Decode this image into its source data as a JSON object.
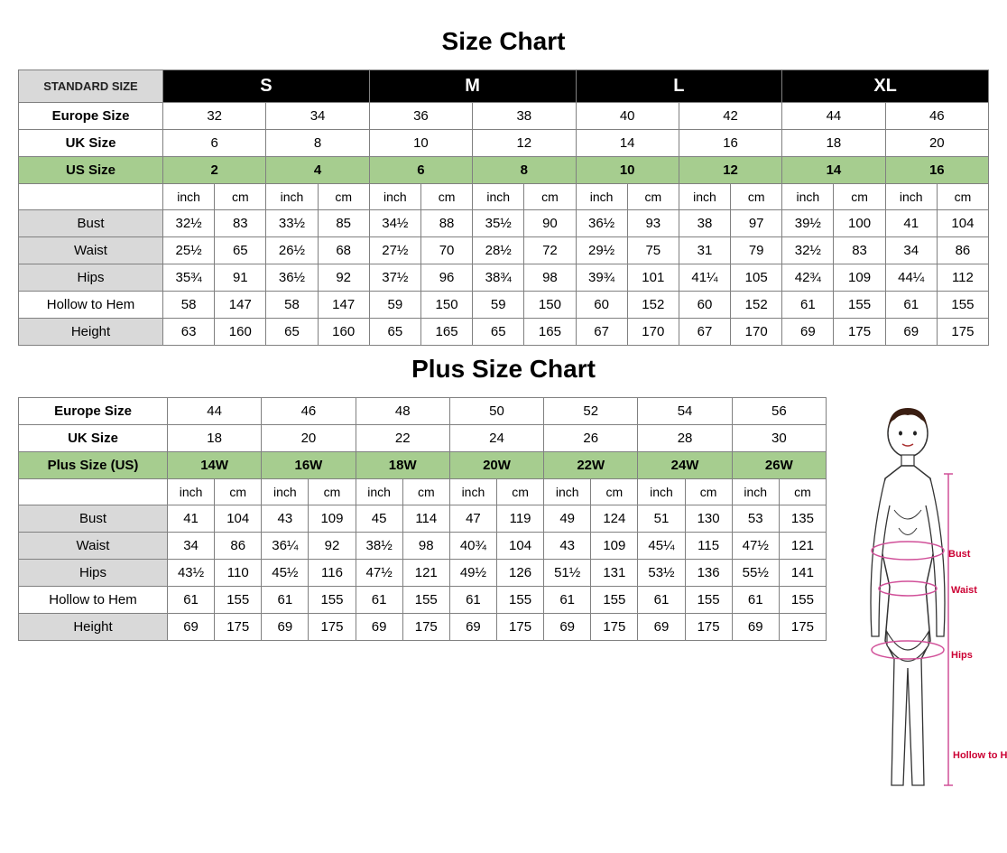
{
  "colors": {
    "header_black": "#000000",
    "header_gray": "#d9d9d9",
    "header_green": "#a6cd8f",
    "border": "#808080",
    "accent_red": "#cc0033"
  },
  "typography": {
    "title_fontsize": 28,
    "header_fontsize": 20,
    "cell_fontsize": 15
  },
  "sizeChart": {
    "title": "Size Chart",
    "standardLabel": "STANDARD SIZE",
    "standardSizes": [
      "S",
      "M",
      "L",
      "XL"
    ],
    "headerRows": [
      {
        "label": "Europe Size",
        "style": "white",
        "values": [
          "32",
          "34",
          "36",
          "38",
          "40",
          "42",
          "44",
          "46"
        ]
      },
      {
        "label": "UK Size",
        "style": "white",
        "values": [
          "6",
          "8",
          "10",
          "12",
          "14",
          "16",
          "18",
          "20"
        ]
      },
      {
        "label": "US Size",
        "style": "green",
        "values": [
          "2",
          "4",
          "6",
          "8",
          "10",
          "12",
          "14",
          "16"
        ]
      }
    ],
    "unitHeaders": [
      "inch",
      "cm",
      "inch",
      "cm",
      "inch",
      "cm",
      "inch",
      "cm",
      "inch",
      "cm",
      "inch",
      "cm",
      "inch",
      "cm",
      "inch",
      "cm"
    ],
    "measureRows": [
      {
        "label": "Bust",
        "style": "gray",
        "values": [
          "32½",
          "83",
          "33½",
          "85",
          "34½",
          "88",
          "35½",
          "90",
          "36½",
          "93",
          "38",
          "97",
          "39½",
          "100",
          "41",
          "104"
        ]
      },
      {
        "label": "Waist",
        "style": "gray",
        "values": [
          "25½",
          "65",
          "26½",
          "68",
          "27½",
          "70",
          "28½",
          "72",
          "29½",
          "75",
          "31",
          "79",
          "32½",
          "83",
          "34",
          "86"
        ]
      },
      {
        "label": "Hips",
        "style": "gray",
        "values": [
          "35¾",
          "91",
          "36½",
          "92",
          "37½",
          "96",
          "38¾",
          "98",
          "39¾",
          "101",
          "41¼",
          "105",
          "42¾",
          "109",
          "44¼",
          "112"
        ]
      },
      {
        "label": "Hollow to Hem",
        "style": "plain",
        "values": [
          "58",
          "147",
          "58",
          "147",
          "59",
          "150",
          "59",
          "150",
          "60",
          "152",
          "60",
          "152",
          "61",
          "155",
          "61",
          "155"
        ]
      },
      {
        "label": "Height",
        "style": "gray",
        "values": [
          "63",
          "160",
          "65",
          "160",
          "65",
          "165",
          "65",
          "165",
          "67",
          "170",
          "67",
          "170",
          "69",
          "175",
          "69",
          "175"
        ]
      }
    ]
  },
  "plusChart": {
    "title": "Plus Size Chart",
    "headerRows": [
      {
        "label": "Europe Size",
        "style": "white",
        "values": [
          "44",
          "46",
          "48",
          "50",
          "52",
          "54",
          "56"
        ]
      },
      {
        "label": "UK Size",
        "style": "white",
        "values": [
          "18",
          "20",
          "22",
          "24",
          "26",
          "28",
          "30"
        ]
      },
      {
        "label": "Plus Size (US)",
        "style": "green",
        "values": [
          "14W",
          "16W",
          "18W",
          "20W",
          "22W",
          "24W",
          "26W"
        ]
      }
    ],
    "unitHeaders": [
      "inch",
      "cm",
      "inch",
      "cm",
      "inch",
      "cm",
      "inch",
      "cm",
      "inch",
      "cm",
      "inch",
      "cm",
      "inch",
      "cm"
    ],
    "measureRows": [
      {
        "label": "Bust",
        "style": "gray",
        "values": [
          "41",
          "104",
          "43",
          "109",
          "45",
          "114",
          "47",
          "119",
          "49",
          "124",
          "51",
          "130",
          "53",
          "135"
        ]
      },
      {
        "label": "Waist",
        "style": "gray",
        "values": [
          "34",
          "86",
          "36¼",
          "92",
          "38½",
          "98",
          "40¾",
          "104",
          "43",
          "109",
          "45¼",
          "115",
          "47½",
          "121"
        ]
      },
      {
        "label": "Hips",
        "style": "gray",
        "values": [
          "43½",
          "110",
          "45½",
          "116",
          "47½",
          "121",
          "49½",
          "126",
          "51½",
          "131",
          "53½",
          "136",
          "55½",
          "141"
        ]
      },
      {
        "label": "Hollow to Hem",
        "style": "plain",
        "values": [
          "61",
          "155",
          "61",
          "155",
          "61",
          "155",
          "61",
          "155",
          "61",
          "155",
          "61",
          "155",
          "61",
          "155"
        ]
      },
      {
        "label": "Height",
        "style": "gray",
        "values": [
          "69",
          "175",
          "69",
          "175",
          "69",
          "175",
          "69",
          "175",
          "69",
          "175",
          "69",
          "175",
          "69",
          "175"
        ]
      }
    ]
  },
  "diagram": {
    "labels": {
      "bust": "Bust",
      "waist": "Waist",
      "hips": "Hips",
      "hollowToHem": "Hollow to Hem"
    }
  }
}
